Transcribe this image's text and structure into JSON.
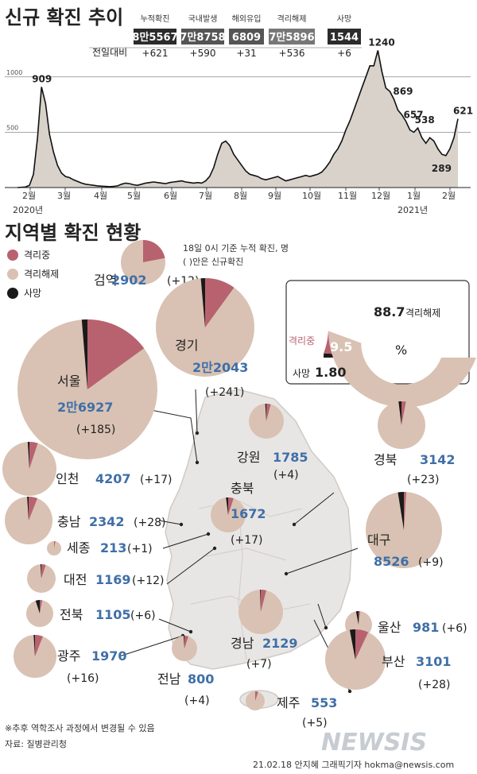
{
  "header": {
    "title": "신규 확진 추이",
    "diff_label": "전일대비",
    "stats": [
      {
        "label": "누적확진",
        "value": "8만5567",
        "diff": "+621",
        "diff_color": "#c8272d",
        "box": "#2b2b2b"
      },
      {
        "label": "국내발생",
        "value": "7만8758",
        "diff": "+590",
        "diff_color": "#222222",
        "box": "#555555"
      },
      {
        "label": "해외유입",
        "value": "6809",
        "diff": "+31",
        "diff_color": "#222222",
        "box": "#555555"
      },
      {
        "label": "격리해제",
        "value": "7만5896",
        "diff": "+536",
        "diff_color": "#222222",
        "box": "#777777"
      },
      {
        "label": "사망",
        "value": "1544",
        "diff": "+6",
        "diff_color": "#222222",
        "box": "#2b2b2b"
      }
    ]
  },
  "chart_data": {
    "type": "area",
    "ylim": [
      0,
      1300
    ],
    "reference_lines": [
      1000,
      500
    ],
    "reference_labels": [
      "1000",
      "500"
    ],
    "months": [
      "2월",
      "3월",
      "4월",
      "5월",
      "6월",
      "7월",
      "8월",
      "9월",
      "10월",
      "11월",
      "12월",
      "1월",
      "2월"
    ],
    "year_labels": [
      "2020년",
      "2021년"
    ],
    "series": [
      {
        "values": [
          0,
          2,
          5,
          20,
          120,
          450,
          909,
          760,
          480,
          320,
          200,
          130,
          100,
          90,
          70,
          55,
          40,
          30,
          25,
          20,
          15,
          12,
          10,
          8,
          10,
          15,
          30,
          40,
          35,
          25,
          20,
          30,
          40,
          45,
          50,
          45,
          40,
          35,
          45,
          50,
          55,
          60,
          50,
          45,
          40,
          45,
          40,
          60,
          100,
          180,
          300,
          400,
          420,
          380,
          300,
          250,
          200,
          150,
          120,
          110,
          100,
          80,
          70,
          80,
          90,
          100,
          80,
          60,
          70,
          80,
          90,
          100,
          110,
          100,
          110,
          120,
          140,
          180,
          230,
          300,
          350,
          420,
          520,
          600,
          700,
          800,
          900,
          1000,
          1100,
          1100,
          1240,
          1050,
          900,
          869,
          800,
          700,
          657,
          600,
          520,
          500,
          538,
          450,
          400,
          450,
          420,
          350,
          300,
          289,
          350,
          450,
          621
        ],
        "color": "#d8d2cb",
        "stroke": "#111111"
      }
    ],
    "annotations": [
      {
        "label": "909",
        "value": 909,
        "index": 6
      },
      {
        "label": "1240",
        "value": 1240,
        "index": 90
      },
      {
        "label": "869",
        "value": 869,
        "index": 93
      },
      {
        "label": "657",
        "value": 657,
        "index": 96
      },
      {
        "label": "538",
        "value": 538,
        "index": 100
      },
      {
        "label": "289",
        "value": 289,
        "index": 107
      },
      {
        "label": "621",
        "value": 621,
        "index": 110
      }
    ]
  },
  "regional": {
    "title": "지역별 확진 현황",
    "note1": "18일 0시 기준 누적 확진, 명",
    "note2": "( )안은 신규확진",
    "legend": [
      {
        "label": "격리중",
        "color": "#b86270"
      },
      {
        "label": "격리해제",
        "color": "#d9c2b3"
      },
      {
        "label": "사망",
        "color": "#1a1a1a"
      }
    ],
    "summary": {
      "isolated_label": "격리중",
      "isolated_value": "9.5",
      "released_value": "88.7",
      "released_label": "격리해제",
      "death_label": "사망",
      "death_value": "1.80",
      "unit": "%",
      "isolated_pct": 9.5,
      "released_pct": 88.7,
      "death_pct": 1.8
    },
    "regions": [
      {
        "name": "검역",
        "total": "2902",
        "new": "(+12)",
        "iso": 0.22,
        "death": 0.0
      },
      {
        "name": "경기",
        "total": "2만2043",
        "new": "(+241)",
        "iso": 0.1,
        "death": 0.014
      },
      {
        "name": "서울",
        "total": "2만6927",
        "new": "(+185)",
        "iso": 0.15,
        "death": 0.013
      },
      {
        "name": "인천",
        "total": "4207",
        "new": "(+17)",
        "iso": 0.05,
        "death": 0.01
      },
      {
        "name": "강원",
        "total": "1785",
        "new": "(+4)",
        "iso": 0.04,
        "death": 0.01
      },
      {
        "name": "경북",
        "total": "3142",
        "new": "(+23)",
        "iso": 0.03,
        "death": 0.02
      },
      {
        "name": "충남",
        "total": "2342",
        "new": "(+28)",
        "iso": 0.06,
        "death": 0.01
      },
      {
        "name": "충북",
        "total": "1672",
        "new": "(+17)",
        "iso": 0.05,
        "death": 0.02
      },
      {
        "name": "세종",
        "total": "213",
        "new": "(+1)",
        "iso": 0.03,
        "death": 0.0
      },
      {
        "name": "대구",
        "total": "8526",
        "new": "(+9)",
        "iso": 0.01,
        "death": 0.025
      },
      {
        "name": "대전",
        "total": "1169",
        "new": "(+12)",
        "iso": 0.05,
        "death": 0.01
      },
      {
        "name": "전북",
        "total": "1105",
        "new": "(+6)",
        "iso": 0.03,
        "death": 0.05
      },
      {
        "name": "울산",
        "total": "981",
        "new": "(+6)",
        "iso": 0.02,
        "death": 0.03
      },
      {
        "name": "광주",
        "total": "1970",
        "new": "(+16)",
        "iso": 0.06,
        "death": 0.01
      },
      {
        "name": "경남",
        "total": "2129",
        "new": "(+7)",
        "iso": 0.04,
        "death": 0.005
      },
      {
        "name": "부산",
        "total": "3101",
        "new": "(+28)",
        "iso": 0.07,
        "death": 0.03
      },
      {
        "name": "전남",
        "total": "800",
        "new": "(+4)",
        "iso": 0.05,
        "death": 0.01
      },
      {
        "name": "제주",
        "total": "553",
        "new": "(+5)",
        "iso": 0.05,
        "death": 0.0
      }
    ]
  },
  "footer": {
    "note": "※추후 역학조사 과정에서 변경될 수 있음",
    "source": "자료: 질병관리청",
    "credit": "21.02.18 안지혜 그래픽기자 hokma@newsis.com",
    "logo": "NEWSIS"
  }
}
